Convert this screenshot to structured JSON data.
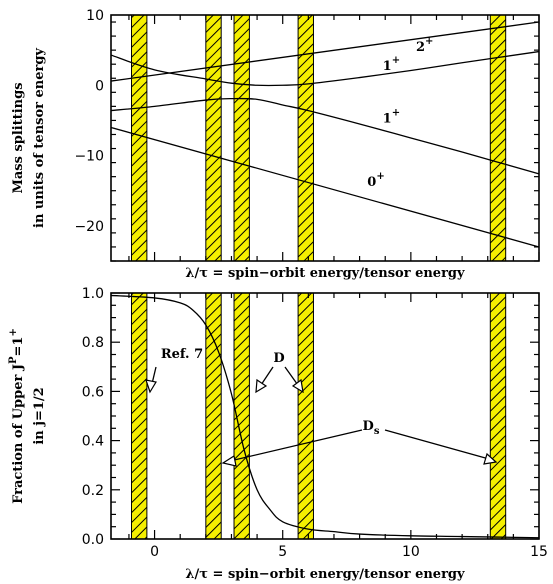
{
  "chart_data": [
    {
      "type": "line",
      "ylabel_line1": "Mass splittings",
      "ylabel_line2": "in units of tensor energy",
      "xlabel": "λ/τ = spin−orbit energy/tensor energy",
      "xlim": [
        -1.7,
        15
      ],
      "ylim": [
        -25,
        10
      ],
      "y_ticks": [
        10,
        0,
        -10,
        -20
      ],
      "y_tick_labels": [
        "10",
        "0",
        "−10",
        "−20"
      ],
      "hatched_bands": [
        [
          -0.9,
          -0.3
        ],
        [
          2.0,
          2.6
        ],
        [
          3.1,
          3.7
        ],
        [
          5.6,
          6.2
        ],
        [
          13.1,
          13.7
        ]
      ],
      "series": [
        {
          "name": "2+",
          "x": [
            -1.7,
            15
          ],
          "y": [
            0.6,
            9.0
          ]
        },
        {
          "name": "1+",
          "x": [
            -1.7,
            0,
            2,
            3,
            4,
            5,
            6,
            8,
            10,
            12,
            15
          ],
          "y": [
            4.3,
            2.2,
            0.9,
            0.3,
            0.0,
            0.0,
            0.2,
            1.1,
            2.1,
            3.2,
            4.8
          ]
        },
        {
          "name": "1+",
          "x": [
            -1.7,
            0,
            2,
            3,
            4,
            5,
            6,
            8,
            10,
            12,
            15
          ],
          "y": [
            -3.6,
            -3.0,
            -2.1,
            -1.9,
            -2.0,
            -2.8,
            -3.6,
            -5.5,
            -7.5,
            -9.5,
            -12.6
          ]
        },
        {
          "name": "0+",
          "x": [
            -1.7,
            15
          ],
          "y": [
            -6.0,
            -23.0
          ]
        }
      ],
      "annotations": [
        {
          "text": "2",
          "sup": "+",
          "x": 10.2,
          "y": 4.9
        },
        {
          "text": "1",
          "sup": "+",
          "x": 8.9,
          "y": 2.2
        },
        {
          "text": "1",
          "sup": "+",
          "x": 8.9,
          "y": -5.3
        },
        {
          "text": "0",
          "sup": "+",
          "x": 8.3,
          "y": -14.3
        }
      ]
    },
    {
      "type": "line",
      "ylabel_line1": "Fraction of Upper J",
      "ylabel_sup1": "P",
      "ylabel_rest": "=1",
      "ylabel_sup2": "+",
      "ylabel_line2": "in j=1/2",
      "xlabel": "λ/τ = spin−orbit energy/tensor energy",
      "xlim": [
        -1.7,
        15
      ],
      "ylim": [
        0,
        1.0
      ],
      "x_ticks": [
        0,
        5,
        10,
        15
      ],
      "x_tick_labels": [
        "0",
        "5",
        "10",
        "15"
      ],
      "y_ticks": [
        1.0,
        0.8,
        0.6,
        0.4,
        0.2,
        0.0
      ],
      "y_tick_labels": [
        "1.0",
        "0.8",
        "0.6",
        "0.4",
        "0.2",
        "0.0"
      ],
      "hatched_bands": [
        [
          -0.9,
          -0.3
        ],
        [
          2.0,
          2.6
        ],
        [
          3.1,
          3.7
        ],
        [
          5.6,
          6.2
        ],
        [
          13.1,
          13.7
        ]
      ],
      "series": [
        {
          "name": "",
          "x": [
            -1.7,
            0,
            1,
            1.5,
            2,
            2.5,
            3,
            3.5,
            4,
            4.5,
            5,
            6,
            7,
            8,
            10,
            12,
            15
          ],
          "y": [
            0.99,
            0.98,
            0.96,
            0.93,
            0.87,
            0.76,
            0.59,
            0.36,
            0.2,
            0.12,
            0.07,
            0.04,
            0.03,
            0.02,
            0.013,
            0.01,
            0.005
          ]
        }
      ],
      "labels": {
        "ref7": "Ref. 7",
        "D": "D",
        "Ds_main": "D",
        "Ds_sub": "s"
      }
    }
  ]
}
